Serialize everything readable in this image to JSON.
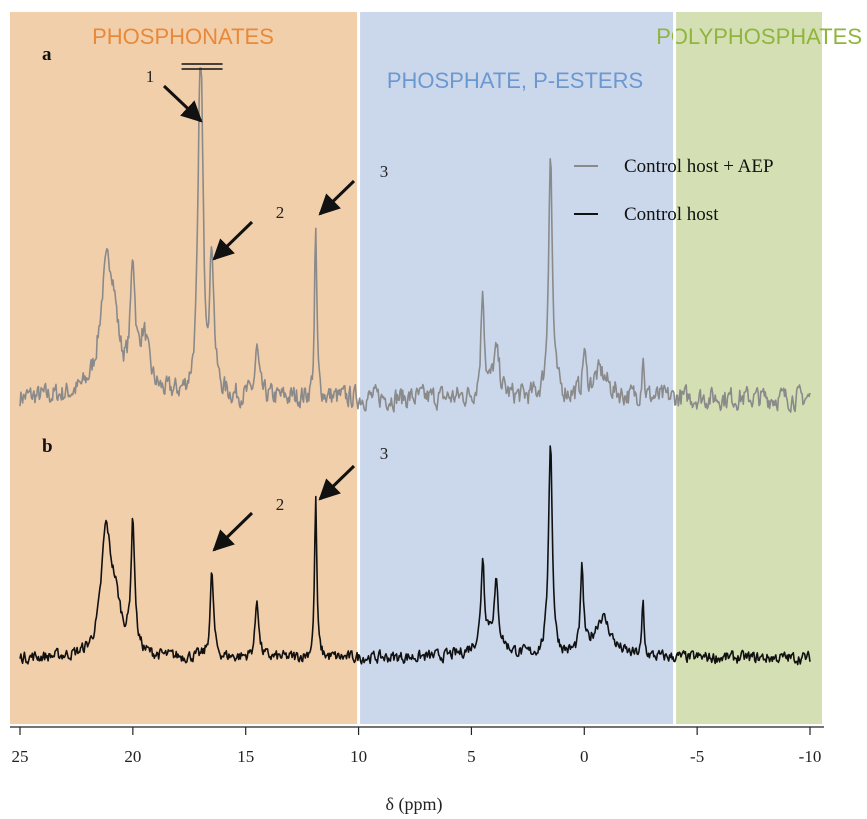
{
  "chart_data": {
    "type": "line",
    "x_unit": "ppm",
    "xlabel": "δ (ppm)",
    "xlim": [
      25,
      -10
    ],
    "x_ticks": [
      25,
      20,
      15,
      10,
      5,
      0,
      -5,
      -10
    ],
    "x_tick_labels": [
      "25",
      "20",
      "15",
      "10",
      "5",
      "0",
      "-5",
      "-10"
    ],
    "grid": false,
    "regions": [
      {
        "label": "PHOSPHONATES",
        "from": 25,
        "to": 10,
        "fill": "#f2cfab",
        "text_color": "#e8893a"
      },
      {
        "label": "PHOSPHATE, P-ESTERS",
        "from": 10,
        "to": -4,
        "fill": "#cbd8ec",
        "text_color": "#6c98d0"
      },
      {
        "label": "POLYPHOSPHATES",
        "from": -4,
        "to": -10,
        "fill": "#d4e0b4",
        "text_color": "#8fb53c"
      }
    ],
    "panels": [
      {
        "panel_label": "a",
        "series": [
          {
            "name": "Control host + AEP",
            "color": "#8a8a8a",
            "peaks": [
              {
                "x": 21.2,
                "h": 0.27,
                "w": 0.35
              },
              {
                "x": 20.9,
                "h": 0.18,
                "w": 0.3
              },
              {
                "x": 20.0,
                "h": 0.33,
                "w": 0.12
              },
              {
                "x": 19.5,
                "h": 0.15,
                "w": 0.25
              },
              {
                "x": 17.0,
                "h": 1.0,
                "w": 0.12
              },
              {
                "x": 16.5,
                "h": 0.38,
                "w": 0.11
              },
              {
                "x": 14.5,
                "h": 0.13,
                "w": 0.1
              },
              {
                "x": 11.9,
                "h": 0.46,
                "w": 0.06
              },
              {
                "x": 4.5,
                "h": 0.3,
                "w": 0.09
              },
              {
                "x": 3.9,
                "h": 0.12,
                "w": 0.18
              },
              {
                "x": 1.5,
                "h": 0.68,
                "w": 0.1
              },
              {
                "x": 0.0,
                "h": 0.12,
                "w": 0.08
              },
              {
                "x": -0.7,
                "h": 0.07,
                "w": 0.4
              },
              {
                "x": -2.6,
                "h": 0.13,
                "w": 0.05
              }
            ],
            "baseline_noise": 0.045
          }
        ],
        "annotations": [
          {
            "text": "1",
            "x": 17.0
          },
          {
            "text": "2",
            "x": 16.5
          },
          {
            "text": "3",
            "x": 11.9
          }
        ]
      },
      {
        "panel_label": "b",
        "series": [
          {
            "name": "Control host",
            "color": "#111111",
            "peaks": [
              {
                "x": 21.2,
                "h": 0.45,
                "w": 0.25
              },
              {
                "x": 20.8,
                "h": 0.2,
                "w": 0.35
              },
              {
                "x": 20.0,
                "h": 0.52,
                "w": 0.1
              },
              {
                "x": 16.5,
                "h": 0.34,
                "w": 0.09
              },
              {
                "x": 14.5,
                "h": 0.24,
                "w": 0.09
              },
              {
                "x": 11.9,
                "h": 0.64,
                "w": 0.06
              },
              {
                "x": 4.5,
                "h": 0.33,
                "w": 0.08
              },
              {
                "x": 3.9,
                "h": 0.22,
                "w": 0.1
              },
              {
                "x": 4.2,
                "h": 0.1,
                "w": 0.6
              },
              {
                "x": 1.5,
                "h": 0.87,
                "w": 0.1
              },
              {
                "x": 0.1,
                "h": 0.33,
                "w": 0.08
              },
              {
                "x": -0.8,
                "h": 0.16,
                "w": 0.45
              },
              {
                "x": -2.6,
                "h": 0.22,
                "w": 0.05
              }
            ],
            "baseline_noise": 0.035
          }
        ],
        "annotations": [
          {
            "text": "2",
            "x": 16.5
          },
          {
            "text": "3",
            "x": 11.9
          }
        ]
      }
    ],
    "legend": {
      "position": "top-right",
      "entries": [
        {
          "label": "Control host + AEP",
          "color": "#8a8a8a"
        },
        {
          "label": "Control host",
          "color": "#111111"
        }
      ]
    }
  }
}
